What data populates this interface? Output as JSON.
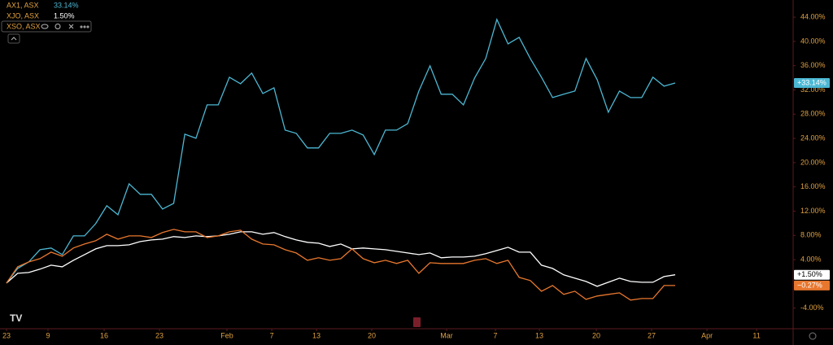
{
  "chart_data": {
    "type": "line",
    "x": [
      0,
      1,
      2,
      3,
      4,
      5,
      6,
      7,
      8,
      9,
      10,
      11,
      12,
      13,
      14,
      15,
      16,
      17,
      18,
      19,
      20,
      21,
      22,
      23,
      24,
      25,
      26,
      27,
      28,
      29,
      30,
      31,
      32,
      33,
      34,
      35,
      36,
      37,
      38,
      39,
      40,
      41,
      42,
      43,
      44,
      45,
      46,
      47,
      48,
      49,
      50,
      51,
      52,
      53,
      54,
      55,
      56,
      57,
      58,
      59,
      60
    ],
    "series": [
      {
        "name": "AX1, ASX",
        "color": "#4cb8d4",
        "legend_value": "33.14%",
        "badge": "+33.14%",
        "values": [
          0.13,
          2.55,
          3.62,
          5.64,
          5.91,
          4.83,
          7.92,
          7.92,
          9.93,
          12.89,
          11.41,
          16.51,
          14.77,
          14.77,
          12.35,
          13.29,
          24.7,
          24.03,
          29.53,
          29.53,
          34.09,
          33.02,
          34.77,
          31.41,
          32.35,
          25.37,
          24.83,
          22.42,
          22.42,
          24.83,
          24.83,
          25.37,
          24.56,
          21.34,
          25.37,
          25.37,
          26.44,
          31.81,
          35.97,
          31.28,
          31.28,
          29.53,
          33.96,
          37.18,
          43.62,
          39.6,
          40.67,
          37.18,
          34.09,
          30.74,
          31.28,
          31.81,
          37.18,
          33.69,
          28.32,
          31.81,
          30.74,
          30.74,
          34.09,
          32.62,
          33.14
        ]
      },
      {
        "name": "XJO, ASX",
        "color": "#ffffff",
        "legend_value": "1.50%",
        "badge": "+1.50%",
        "values": [
          0.13,
          1.74,
          1.88,
          2.42,
          3.09,
          2.82,
          3.89,
          4.83,
          5.77,
          6.31,
          6.31,
          6.44,
          6.98,
          7.25,
          7.38,
          7.79,
          7.65,
          7.92,
          7.79,
          7.92,
          8.19,
          8.59,
          8.59,
          8.19,
          8.46,
          7.79,
          7.25,
          6.85,
          6.71,
          6.17,
          6.58,
          5.77,
          5.91,
          5.77,
          5.64,
          5.37,
          5.1,
          4.83,
          5.1,
          4.3,
          4.43,
          4.43,
          4.56,
          4.97,
          5.5,
          6.04,
          5.23,
          5.23,
          3.09,
          2.55,
          1.48,
          0.94,
          0.4,
          -0.4,
          0.27,
          0.94,
          0.4,
          0.27,
          0.27,
          1.21,
          1.5
        ]
      },
      {
        "name": "XSO, ASX",
        "color": "#e8772e",
        "badge": "−0.27%",
        "values": [
          0.13,
          2.82,
          3.62,
          4.16,
          5.23,
          4.56,
          5.91,
          6.58,
          7.11,
          8.19,
          7.38,
          7.92,
          7.92,
          7.65,
          8.46,
          8.99,
          8.59,
          8.59,
          7.65,
          7.92,
          8.59,
          8.86,
          7.38,
          6.58,
          6.44,
          5.64,
          5.1,
          3.89,
          4.3,
          3.89,
          4.16,
          5.77,
          4.16,
          3.49,
          3.89,
          3.36,
          3.89,
          1.74,
          3.49,
          3.36,
          3.36,
          3.36,
          3.89,
          4.16,
          3.36,
          3.89,
          1.07,
          0.54,
          -1.21,
          -0.27,
          -1.74,
          -1.21,
          -2.55,
          -2.01,
          -1.74,
          -1.48,
          -2.68,
          -2.42,
          -2.42,
          -0.27,
          -0.27
        ]
      }
    ],
    "xlim": [
      -0.584,
      70.58
    ],
    "xticks": [
      {
        "value": 0,
        "label": "23"
      },
      {
        "value": 3.72,
        "label": "9"
      },
      {
        "value": 8.76,
        "label": "16"
      },
      {
        "value": 13.72,
        "label": "23"
      },
      {
        "value": 19.78,
        "label": "Feb"
      },
      {
        "value": 23.8,
        "label": "7"
      },
      {
        "value": 27.81,
        "label": "13"
      },
      {
        "value": 32.77,
        "label": "20"
      },
      {
        "value": 39.49,
        "label": "Mar"
      },
      {
        "value": 43.87,
        "label": "7"
      },
      {
        "value": 47.81,
        "label": "13"
      },
      {
        "value": 52.92,
        "label": "20"
      },
      {
        "value": 57.88,
        "label": "27"
      },
      {
        "value": 62.85,
        "label": "Apr"
      },
      {
        "value": 67.3,
        "label": "11"
      }
    ],
    "ylim": [
      -7.4,
      46.83
    ],
    "yticks": [
      {
        "value": 44,
        "label": "44.00%"
      },
      {
        "value": 40,
        "label": "40.00%"
      },
      {
        "value": 36,
        "label": "36.00%"
      },
      {
        "value": 32,
        "label": "32.00%"
      },
      {
        "value": 28,
        "label": "28.00%"
      },
      {
        "value": 24,
        "label": "24.00%"
      },
      {
        "value": 20,
        "label": "20.00%"
      },
      {
        "value": 16,
        "label": "16.00%"
      },
      {
        "value": 12,
        "label": "12.00%"
      },
      {
        "value": 8,
        "label": "8.00%"
      },
      {
        "value": 4,
        "label": "4.00%"
      },
      {
        "value": -4,
        "label": "-4.00%"
      }
    ],
    "grid": false
  }
}
